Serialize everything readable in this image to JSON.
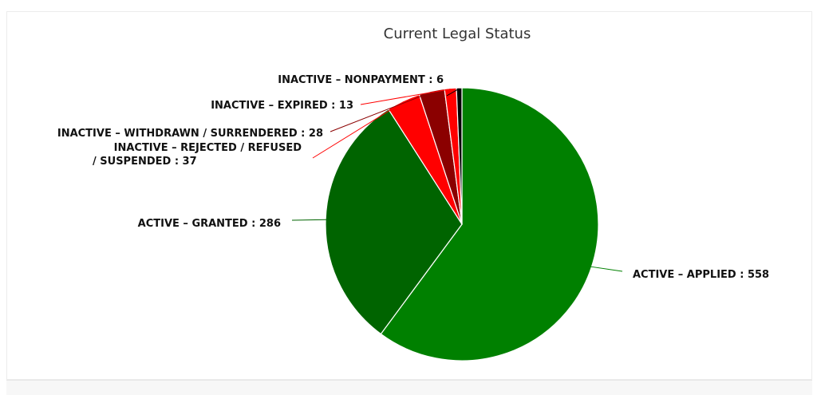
{
  "chart_data": {
    "type": "pie",
    "title": "Current Legal Status",
    "slices": [
      {
        "label": "ACTIVE – APPLIED : 558",
        "name": "ACTIVE – APPLIED",
        "value": 558,
        "color": "#008000"
      },
      {
        "label": "ACTIVE – GRANTED : 286",
        "name": "ACTIVE – GRANTED",
        "value": 286,
        "color": "#006400"
      },
      {
        "label": "INACTIVE – REJECTED / REFUSED / SUSPENDED : 37",
        "name": "INACTIVE – REJECTED / REFUSED / SUSPENDED",
        "value": 37,
        "color": "#ff0000"
      },
      {
        "label": "INACTIVE – WITHDRAWN / SURRENDERED : 28",
        "name": "INACTIVE – WITHDRAWN / SURRENDERED",
        "value": 28,
        "color": "#8b0000"
      },
      {
        "label": "INACTIVE – EXPIRED : 13",
        "name": "INACTIVE – EXPIRED",
        "value": 13,
        "color": "#ff0000"
      },
      {
        "label": "INACTIVE – NONPAYMENT : 6",
        "name": "INACTIVE – NONPAYMENT",
        "value": 6,
        "color": "#000000"
      }
    ],
    "label_lines": [
      [
        "ACTIVE – APPLIED : 558"
      ],
      [
        "ACTIVE – GRANTED : 286"
      ],
      [
        "INACTIVE – REJECTED / REFUSED",
        "/ SUSPENDED : 37"
      ],
      [
        "INACTIVE – WITHDRAWN / SURRENDERED : 28"
      ],
      [
        "INACTIVE – EXPIRED : 13"
      ],
      [
        "INACTIVE – NONPAYMENT : 6"
      ]
    ]
  }
}
